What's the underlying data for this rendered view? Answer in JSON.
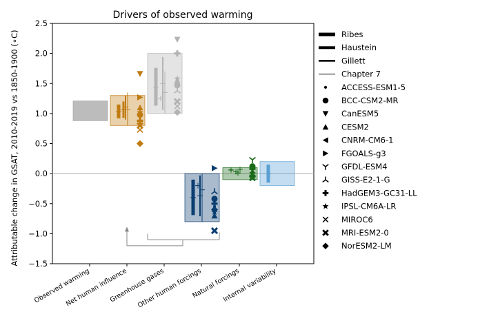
{
  "chart_data": {
    "type": "scatter",
    "title": "Drivers of observed warming",
    "xlabel": "",
    "ylabel": "Attributable change in GSAT, 2010-2019 vs 1850-1900 (∘C)",
    "ylim": [
      -1.5,
      2.5
    ],
    "y_ticks": [
      "−1.5",
      "−1.0",
      "−0.5",
      "0.0",
      "0.5",
      "1.0",
      "1.5",
      "2.0",
      "2.5"
    ],
    "categories": [
      "Observed warming",
      "Net human influence",
      "Greenhouse gases",
      "Other human forcings",
      "Natural forcings",
      "Internal variability"
    ],
    "colors": {
      "Observed warming": "#a6a6a6",
      "Net human influence": "#c07b12",
      "Greenhouse gases": "#b3b3b3",
      "Other human forcings": "#0a3d70",
      "Natural forcings": "#1a6b1a",
      "Internal variability": "#5a9fd4"
    },
    "boxes": [
      {
        "category": "Observed warming",
        "low": 0.88,
        "high": 1.21
      },
      {
        "category": "Net human influence",
        "low": 0.8,
        "high": 1.3
      },
      {
        "category": "Greenhouse gases",
        "low": 1.0,
        "high": 2.0
      },
      {
        "category": "Other human forcings",
        "low": -0.8,
        "high": 0.0
      },
      {
        "category": "Natural forcings",
        "low": -0.1,
        "high": 0.1
      },
      {
        "category": "Internal variability",
        "low": -0.2,
        "high": 0.2
      }
    ],
    "bars": [
      {
        "category": "Net human influence",
        "method": "Ribes",
        "central": 1.03,
        "low": 0.92,
        "high": 1.15
      },
      {
        "category": "Net human influence",
        "method": "Haustein",
        "central": 1.07,
        "low": 0.93,
        "high": 1.2
      },
      {
        "category": "Net human influence",
        "method": "Gillett",
        "central": 1.11,
        "low": 0.9,
        "high": 1.3
      },
      {
        "category": "Net human influence",
        "method": "Chapter 7",
        "central": 1.07,
        "low": 0.8,
        "high": 1.35
      },
      {
        "category": "Greenhouse gases",
        "method": "Ribes",
        "central": 1.44,
        "low": 1.13,
        "high": 1.76
      },
      {
        "category": "Greenhouse gases",
        "method": "Haustein",
        "central": 1.25,
        "low": 1.25,
        "high": 1.25
      },
      {
        "category": "Greenhouse gases",
        "method": "Gillett",
        "central": 1.5,
        "low": 1.06,
        "high": 1.94
      },
      {
        "category": "Greenhouse gases",
        "method": "Chapter 7",
        "central": 1.35,
        "low": 1.0,
        "high": 1.7
      },
      {
        "category": "Other human forcings",
        "method": "Ribes",
        "central": -0.4,
        "low": -0.69,
        "high": -0.1
      },
      {
        "category": "Other human forcings",
        "method": "Haustein",
        "central": -0.2,
        "low": -0.2,
        "high": -0.2
      },
      {
        "category": "Other human forcings",
        "method": "Gillett",
        "central": -0.37,
        "low": -0.71,
        "high": -0.03
      },
      {
        "category": "Other human forcings",
        "method": "Chapter 7",
        "central": -0.27,
        "low": -0.8,
        "high": 0.0
      },
      {
        "category": "Natural forcings",
        "method": "Ribes",
        "central": 0.06,
        "low": 0.05,
        "high": 0.07
      },
      {
        "category": "Natural forcings",
        "method": "Haustein",
        "central": 0.03,
        "low": 0.03,
        "high": 0.03
      },
      {
        "category": "Natural forcings",
        "method": "Gillett",
        "central": 0.01,
        "low": 0.0,
        "high": 0.02
      },
      {
        "category": "Natural forcings",
        "method": "Chapter 7",
        "central": 0.07,
        "low": 0.02,
        "high": 0.1
      },
      {
        "category": "Internal variability",
        "method": "Ribes",
        "central": 0.0,
        "low": -0.15,
        "high": 0.15
      }
    ],
    "models": [
      {
        "category": "Net human influence",
        "model": "CanESM5",
        "value": 1.66
      },
      {
        "category": "Net human influence",
        "model": "FGOALS-g3",
        "value": 1.27
      },
      {
        "category": "Net human influence",
        "model": "CESM2",
        "value": 1.1
      },
      {
        "category": "Net human influence",
        "model": "IPSL-CM6A-LR",
        "value": 1.02
      },
      {
        "category": "Net human influence",
        "model": "ACCESS-ESM1-5",
        "value": 0.95
      },
      {
        "category": "Net human influence",
        "model": "BCC-CSM2-MR",
        "value": 0.98
      },
      {
        "category": "Net human influence",
        "model": "HadGEM3-GC31-LL",
        "value": 0.88
      },
      {
        "category": "Net human influence",
        "model": "MRI-ESM2-0",
        "value": 0.8
      },
      {
        "category": "Net human influence",
        "model": "MIROC6",
        "value": 0.73
      },
      {
        "category": "Net human influence",
        "model": "NorESM2-LM",
        "value": 0.5
      },
      {
        "category": "Greenhouse gases",
        "model": "CanESM5",
        "value": 2.23
      },
      {
        "category": "Greenhouse gases",
        "model": "HadGEM3-GC31-LL",
        "value": 2.0
      },
      {
        "category": "Greenhouse gases",
        "model": "IPSL-CM6A-LR",
        "value": 1.58
      },
      {
        "category": "Greenhouse gases",
        "model": "CESM2",
        "value": 1.55
      },
      {
        "category": "Greenhouse gases",
        "model": "ACCESS-ESM1-5",
        "value": 1.5
      },
      {
        "category": "Greenhouse gases",
        "model": "BCC-CSM2-MR",
        "value": 1.47
      },
      {
        "category": "Greenhouse gases",
        "model": "GISS-E2-1-G",
        "value": 1.38
      },
      {
        "category": "Greenhouse gases",
        "model": "MRI-ESM2-0",
        "value": 1.2
      },
      {
        "category": "Greenhouse gases",
        "model": "MIROC6",
        "value": 1.12
      },
      {
        "category": "Greenhouse gases",
        "model": "NorESM2-LM",
        "value": 1.02
      },
      {
        "category": "Other human forcings",
        "model": "FGOALS-g3",
        "value": 0.09
      },
      {
        "category": "Other human forcings",
        "model": "GISS-E2-1-G",
        "value": -0.3
      },
      {
        "category": "Other human forcings",
        "model": "BCC-CSM2-MR",
        "value": -0.42
      },
      {
        "category": "Other human forcings",
        "model": "HadGEM3-GC31-LL",
        "value": -0.5
      },
      {
        "category": "Other human forcings",
        "model": "ACCESS-ESM1-5",
        "value": -0.55
      },
      {
        "category": "Other human forcings",
        "model": "NorESM2-LM",
        "value": -0.6
      },
      {
        "category": "Other human forcings",
        "model": "IPSL-CM6A-LR",
        "value": -0.64
      },
      {
        "category": "Other human forcings",
        "model": "CESM2",
        "value": -0.7
      },
      {
        "category": "Other human forcings",
        "model": "MRI-ESM2-0",
        "value": -0.95
      },
      {
        "category": "Natural forcings",
        "model": "GFDL-ESM4",
        "value": 0.23
      },
      {
        "category": "Natural forcings",
        "model": "BCC-CSM2-MR",
        "value": 0.12
      },
      {
        "category": "Natural forcings",
        "model": "HadGEM3-GC31-LL",
        "value": 0.08
      },
      {
        "category": "Natural forcings",
        "model": "MIROC6",
        "value": 0.05
      },
      {
        "category": "Natural forcings",
        "model": "ACCESS-ESM1-5",
        "value": 0.02
      },
      {
        "category": "Natural forcings",
        "model": "IPSL-CM6A-LR",
        "value": 0.0
      },
      {
        "category": "Natural forcings",
        "model": "CESM2",
        "value": -0.02
      },
      {
        "category": "Natural forcings",
        "model": "NorESM2-LM",
        "value": -0.05
      },
      {
        "category": "Natural forcings",
        "model": "MRI-ESM2-0",
        "value": -0.07
      }
    ],
    "legend": {
      "placement": "right, outside plot",
      "methods": [
        "Ribes",
        "Haustein",
        "Gillett",
        "Chapter 7"
      ],
      "models": [
        "ACCESS-ESM1-5",
        "BCC-CSM2-MR",
        "CanESM5",
        "CESM2",
        "CNRM-CM6-1",
        "FGOALS-g3",
        "GFDL-ESM4",
        "GISS-E2-1-G",
        "HadGEM3-GC31-LL",
        "IPSL-CM6A-LR",
        "MIROC6",
        "MRI-ESM2-0",
        "NorESM2-LM"
      ]
    },
    "grid": false,
    "zero_line": true
  }
}
